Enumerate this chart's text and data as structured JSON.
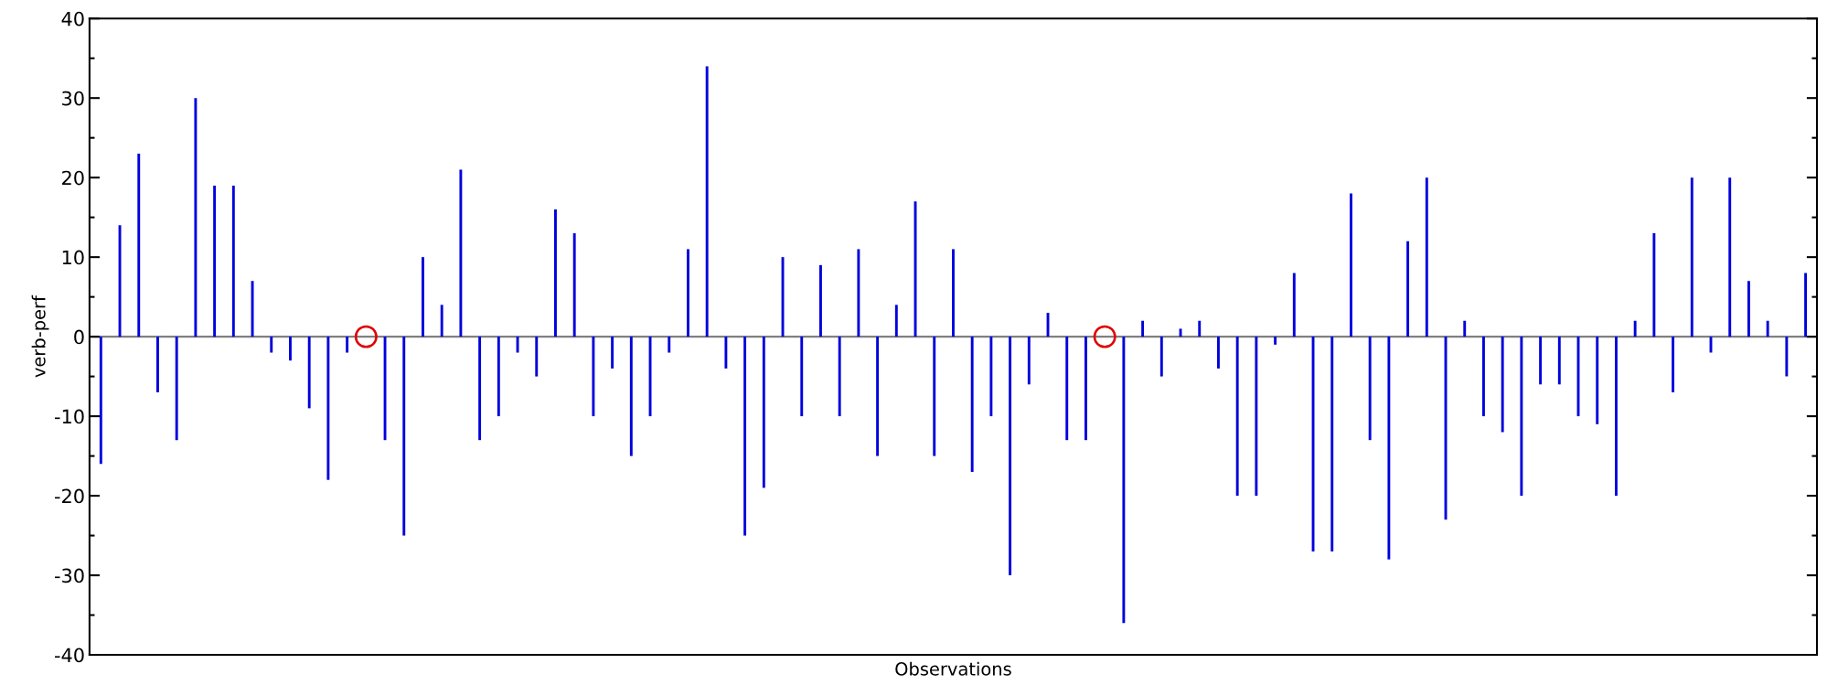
{
  "chart_data": {
    "type": "bar",
    "xlabel": "Observations",
    "ylabel": "verb-perf",
    "categories": [
      null,
      null,
      null,
      null,
      null,
      null,
      null,
      null,
      null,
      null,
      null,
      null,
      null,
      null,
      null,
      null,
      null,
      null,
      null,
      null,
      null,
      null,
      null,
      null,
      null,
      null,
      null,
      null,
      null,
      null,
      null,
      null,
      null,
      null,
      null,
      null,
      null,
      null,
      null,
      null,
      null,
      null,
      null,
      null,
      null,
      null,
      null,
      null,
      null,
      null,
      null,
      null,
      null,
      null,
      null,
      null,
      null,
      null,
      null,
      null,
      null,
      null,
      null,
      null,
      null,
      null,
      null,
      null,
      null,
      null,
      null,
      null,
      null,
      null,
      null,
      null,
      null,
      null,
      null,
      null,
      null,
      null,
      null,
      null,
      null,
      null,
      null,
      null,
      null,
      null,
      null
    ],
    "series": [
      {
        "color": "#0000dd",
        "values": [
          -16,
          14,
          23,
          -7,
          -13,
          30,
          19,
          19,
          7,
          -2,
          -3,
          -9,
          -18,
          -2,
          0,
          -13,
          -25,
          10,
          4,
          21,
          -13,
          -10,
          -2,
          -5,
          16,
          13,
          -10,
          -4,
          -15,
          -10,
          -2,
          11,
          34,
          -4,
          -25,
          -19,
          10,
          -10,
          9,
          -10,
          11,
          -15,
          4,
          17,
          -15,
          11,
          -17,
          -10,
          -30,
          -6,
          3,
          -13,
          -13,
          0,
          -36,
          2,
          -5,
          1,
          2,
          -4,
          -20,
          -20,
          -1,
          8,
          -27,
          -27,
          18,
          -13,
          -28,
          12,
          20,
          -23,
          2,
          -10,
          -12,
          -20,
          -6,
          -6,
          -10,
          -11,
          -20,
          2,
          13,
          -7,
          20,
          -2,
          20,
          7,
          2,
          -5,
          8
        ]
      },
      {
        "type": "scatter",
        "marker": "circle",
        "color": "#e00000",
        "values": [
          null,
          null,
          null,
          null,
          null,
          null,
          null,
          null,
          null,
          null,
          null,
          null,
          null,
          null,
          0,
          null,
          null,
          null,
          null,
          null,
          null,
          null,
          null,
          null,
          null,
          null,
          null,
          null,
          null,
          null,
          null,
          null,
          null,
          null,
          null,
          null,
          null,
          null,
          null,
          null,
          null,
          null,
          null,
          null,
          null,
          null,
          null,
          null,
          null,
          null,
          null,
          null,
          null,
          0,
          null,
          null,
          null,
          null,
          null,
          null,
          null,
          null,
          null,
          null,
          null,
          null,
          null,
          null,
          null,
          null,
          null,
          null,
          null,
          null,
          null,
          null,
          null,
          null,
          null,
          null,
          null,
          null,
          null,
          null,
          null,
          null,
          null,
          null,
          null,
          null,
          null
        ]
      }
    ],
    "ylim": [
      -40,
      40
    ],
    "yticks": [
      -40,
      -30,
      -20,
      -10,
      0,
      10,
      20,
      30,
      40
    ],
    "ref_lines": [
      {
        "axis": "y",
        "value": 0,
        "color": "#808080"
      }
    ],
    "grid": false,
    "legend": false
  }
}
